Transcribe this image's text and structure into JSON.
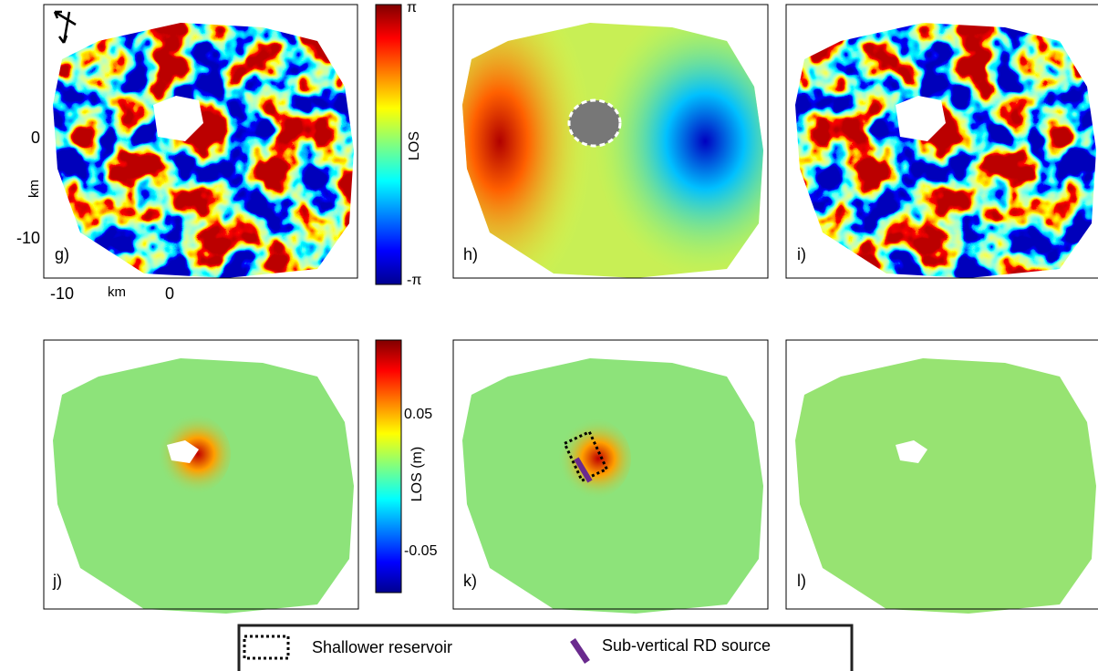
{
  "panels": [
    {
      "label": "g)"
    },
    {
      "label": "h)"
    },
    {
      "label": "i)"
    },
    {
      "label": "j)"
    },
    {
      "label": "k)"
    },
    {
      "label": "l)"
    }
  ],
  "axes": {
    "y_ticks": [
      "0",
      "-10"
    ],
    "y_label": "km",
    "x_ticks": [
      "-10",
      "0"
    ],
    "x_label": "km"
  },
  "colorbars": [
    {
      "label": "LOS",
      "ticks": [
        "π",
        "-π"
      ]
    },
    {
      "label": "LOS (m)",
      "ticks": [
        "0.05",
        "-0.05"
      ]
    }
  ],
  "legend": {
    "items": [
      "Shallower reservoir",
      "Sub-vertical RD source"
    ]
  }
}
